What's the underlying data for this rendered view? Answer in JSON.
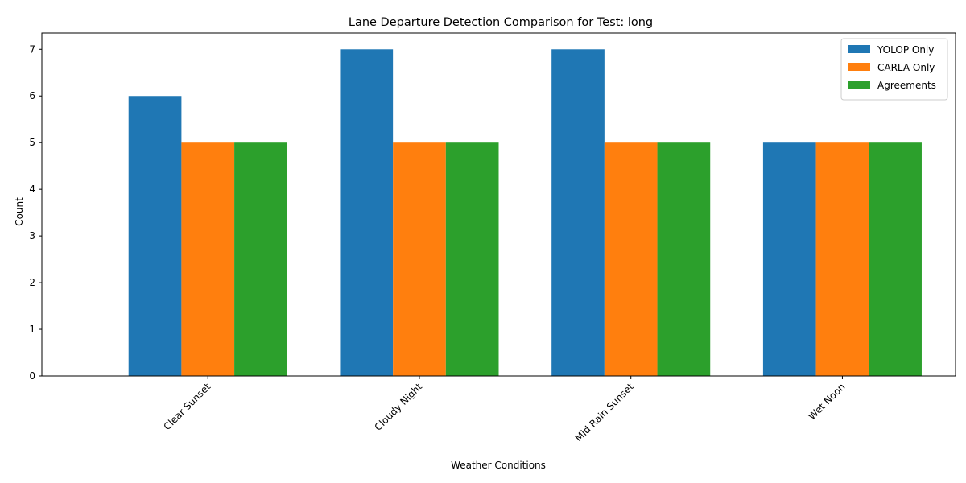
{
  "chart_data": {
    "type": "bar",
    "title": "Lane Departure Detection Comparison for Test: long",
    "xlabel": "Weather Conditions",
    "ylabel": "Count",
    "categories": [
      "Clear Sunset",
      "Cloudy Night",
      "Mid Rain Sunset",
      "Wet Noon"
    ],
    "series": [
      {
        "name": "YOLOP Only",
        "values": [
          6,
          7,
          7,
          5
        ],
        "color": "#1f77b4"
      },
      {
        "name": "CARLA Only",
        "values": [
          5,
          5,
          5,
          5
        ],
        "color": "#ff7f0e"
      },
      {
        "name": "Agreements",
        "values": [
          5,
          5,
          5,
          5
        ],
        "color": "#2ca02c"
      }
    ],
    "ylim": [
      0,
      7.35
    ],
    "yticks": [
      0,
      1,
      2,
      3,
      4,
      5,
      6,
      7
    ],
    "grid": false,
    "legend_position": "top-right"
  }
}
